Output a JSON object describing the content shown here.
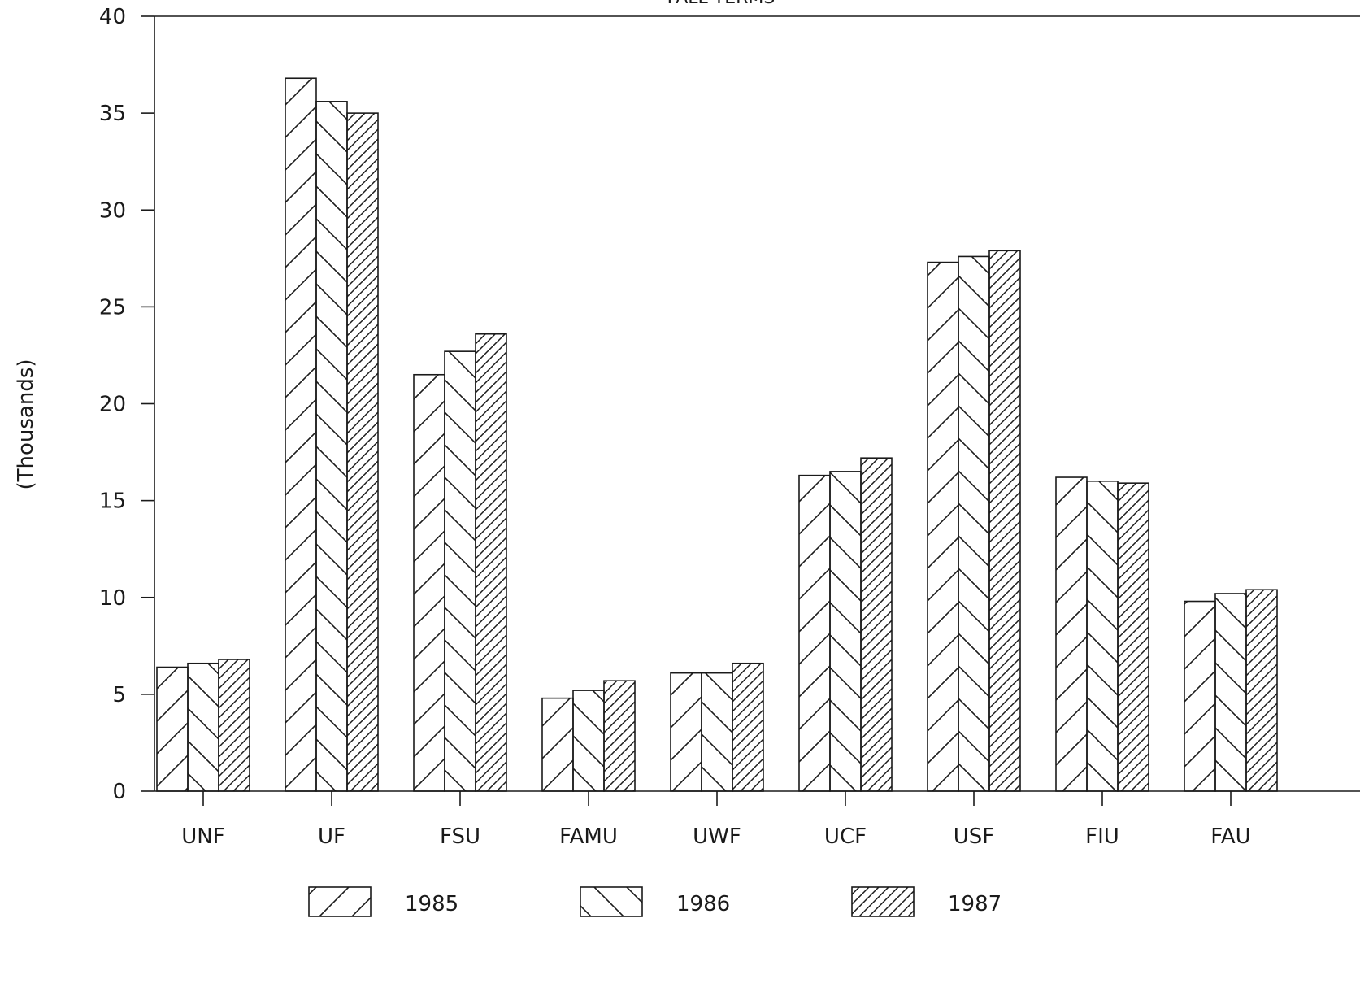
{
  "chart_data": {
    "type": "bar",
    "title": "FALL TERMS",
    "xlabel": "",
    "ylabel": "(Thousands)",
    "ylim": [
      0,
      40
    ],
    "yticks": [
      0,
      5,
      10,
      15,
      20,
      25,
      30,
      35,
      40
    ],
    "categories": [
      "UNF",
      "UF",
      "FSU",
      "FAMU",
      "UWF",
      "UCF",
      "USF",
      "FIU",
      "FAU"
    ],
    "series": [
      {
        "name": "1985",
        "pattern": "wide-diagonal",
        "values": [
          6.4,
          36.8,
          21.5,
          4.8,
          6.1,
          16.3,
          27.3,
          16.2,
          9.8
        ]
      },
      {
        "name": "1986",
        "pattern": "back-diagonal",
        "values": [
          6.6,
          35.6,
          22.7,
          5.2,
          6.1,
          16.5,
          27.6,
          16.0,
          10.2
        ]
      },
      {
        "name": "1987",
        "pattern": "dense-diagonal",
        "values": [
          6.8,
          35.0,
          23.6,
          5.7,
          6.6,
          17.2,
          27.9,
          15.9,
          10.4
        ]
      }
    ],
    "legend_position": "bottom",
    "grid": false,
    "colors": {
      "ink": "#1a1a1a",
      "background": "#ffffff"
    }
  }
}
